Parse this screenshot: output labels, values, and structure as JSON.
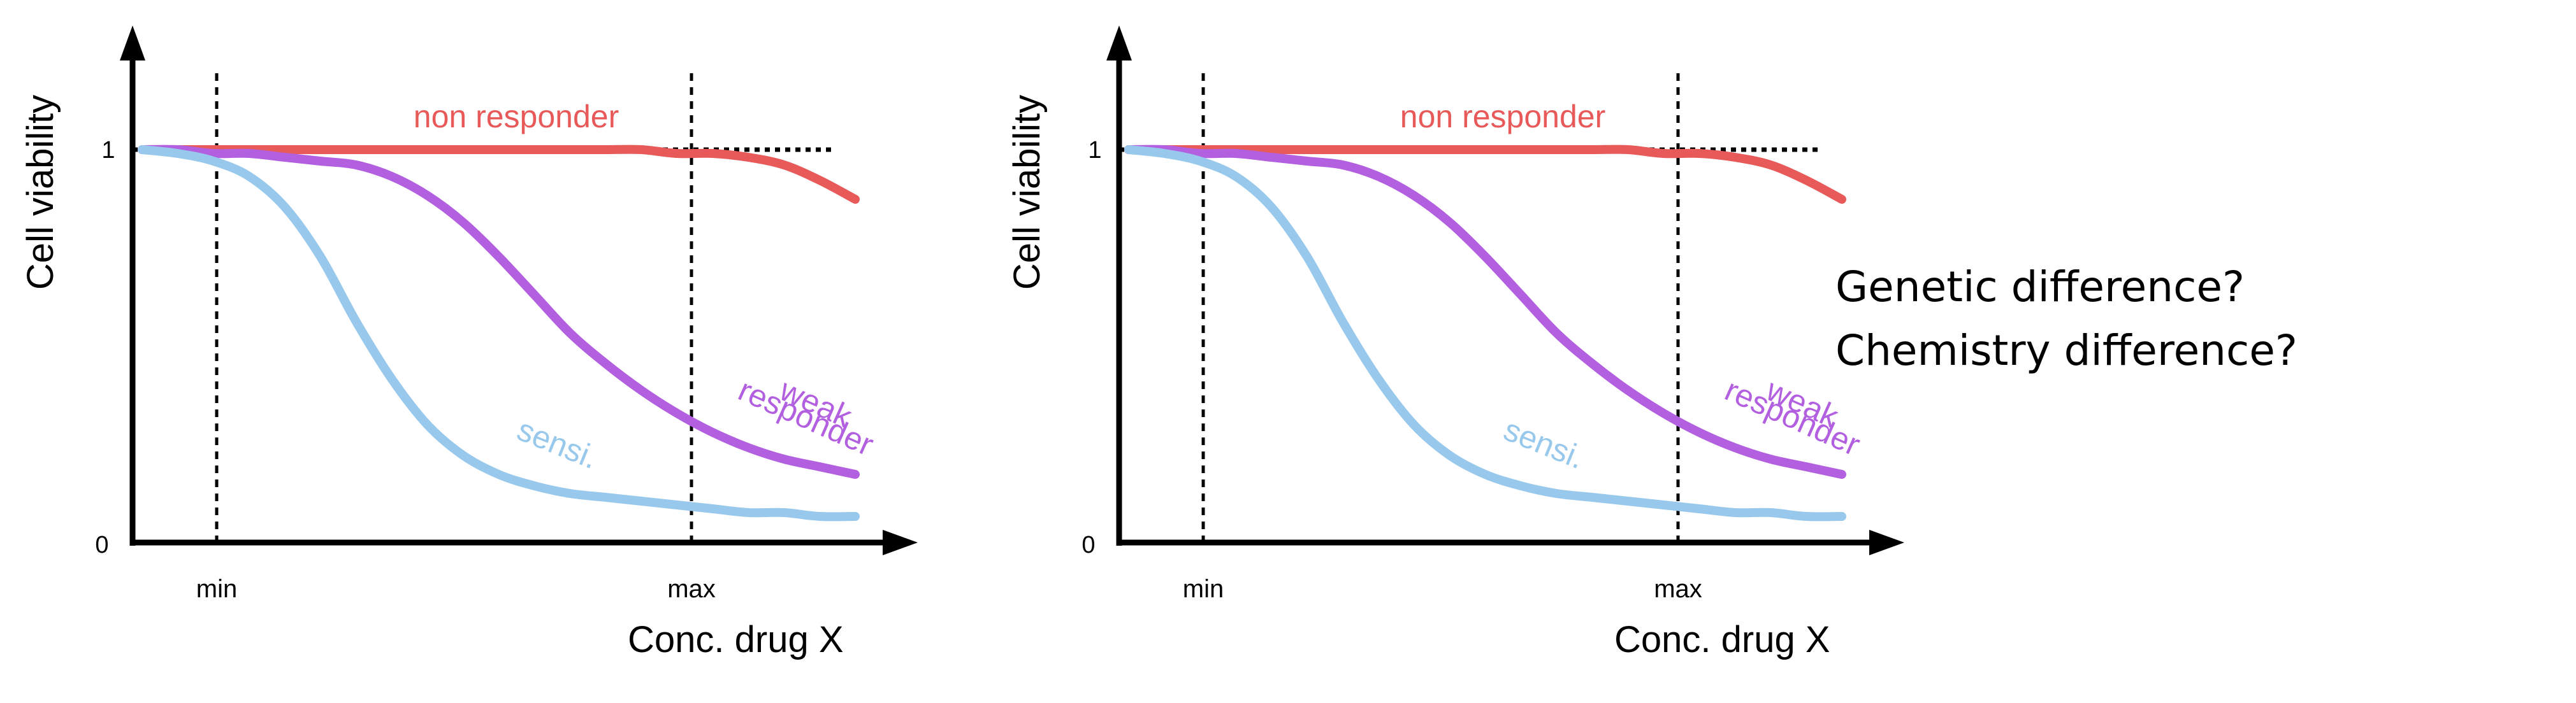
{
  "chart_data": [
    {
      "type": "line",
      "xlabel": "Conc. drug X",
      "ylabel": "Cell viability",
      "y_ticks": [
        "0",
        "1"
      ],
      "x_markers": [
        "min",
        "max"
      ],
      "ylim": [
        0,
        1
      ],
      "x": [
        0,
        0.05,
        0.1,
        0.15,
        0.2,
        0.25,
        0.3,
        0.35,
        0.4,
        0.45,
        0.5,
        0.55,
        0.6,
        0.65,
        0.7,
        0.75,
        0.8,
        0.85,
        0.9,
        0.95,
        1
      ],
      "series": [
        {
          "name": "non responder",
          "color": "#e85a5a",
          "values": [
            1,
            1,
            1,
            1,
            1,
            1,
            1,
            1,
            1,
            1,
            1,
            1,
            1,
            1,
            1,
            0.99,
            0.99,
            0.98,
            0.96,
            0.92,
            0.87
          ]
        },
        {
          "name": "weak responder",
          "color": "#b260e0",
          "values": [
            1,
            1,
            0.99,
            0.99,
            0.98,
            0.97,
            0.96,
            0.93,
            0.88,
            0.81,
            0.72,
            0.62,
            0.52,
            0.44,
            0.37,
            0.31,
            0.26,
            0.22,
            0.19,
            0.17,
            0.15
          ]
        },
        {
          "name": "sensi.",
          "color": "#98c9ec",
          "values": [
            1,
            0.99,
            0.97,
            0.93,
            0.85,
            0.72,
            0.55,
            0.4,
            0.28,
            0.2,
            0.15,
            0.12,
            0.1,
            0.09,
            0.08,
            0.07,
            0.06,
            0.05,
            0.05,
            0.04,
            0.04
          ]
        }
      ]
    },
    {
      "type": "line",
      "xlabel": "Conc. drug X",
      "ylabel": "Cell viability",
      "y_ticks": [
        "0",
        "1"
      ],
      "x_markers": [
        "min",
        "max"
      ],
      "ylim": [
        0,
        1
      ],
      "x": [
        0,
        0.05,
        0.1,
        0.15,
        0.2,
        0.25,
        0.3,
        0.35,
        0.4,
        0.45,
        0.5,
        0.55,
        0.6,
        0.65,
        0.7,
        0.75,
        0.8,
        0.85,
        0.9,
        0.95,
        1
      ],
      "series": [
        {
          "name": "non responder",
          "color": "#e85a5a",
          "values": [
            1,
            1,
            1,
            1,
            1,
            1,
            1,
            1,
            1,
            1,
            1,
            1,
            1,
            1,
            1,
            0.99,
            0.99,
            0.98,
            0.96,
            0.92,
            0.87
          ]
        },
        {
          "name": "weak responder",
          "color": "#b260e0",
          "values": [
            1,
            1,
            0.99,
            0.99,
            0.98,
            0.97,
            0.96,
            0.93,
            0.88,
            0.81,
            0.72,
            0.62,
            0.52,
            0.44,
            0.37,
            0.31,
            0.26,
            0.22,
            0.19,
            0.17,
            0.15
          ]
        },
        {
          "name": "sensi.",
          "color": "#98c9ec",
          "values": [
            1,
            0.99,
            0.97,
            0.93,
            0.85,
            0.72,
            0.55,
            0.4,
            0.28,
            0.2,
            0.15,
            0.12,
            0.1,
            0.09,
            0.08,
            0.07,
            0.06,
            0.05,
            0.05,
            0.04,
            0.04
          ]
        }
      ]
    }
  ],
  "annotation": {
    "lines": [
      "Genetic difference?",
      "Chemistry difference?"
    ]
  }
}
